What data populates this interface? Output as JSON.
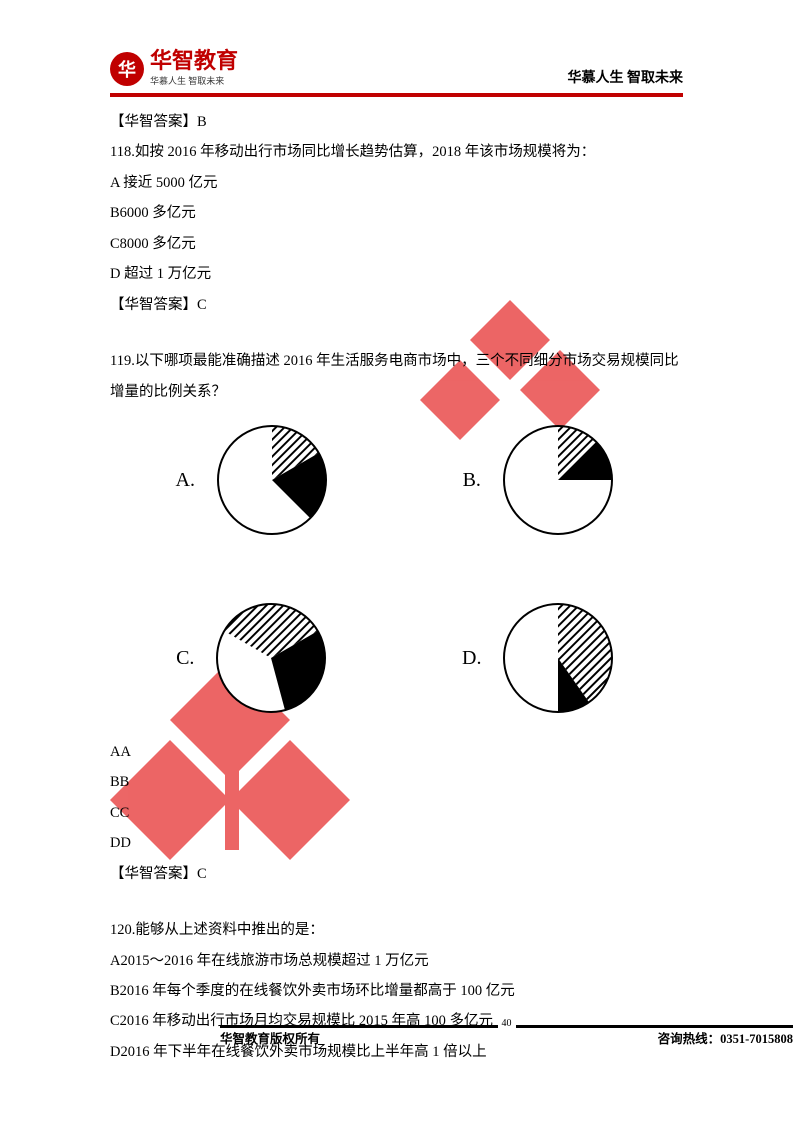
{
  "header": {
    "logo_char": "华",
    "logo_main": "华智教育",
    "logo_sub": "华慕人生 智取未来",
    "right": "华慕人生 智取未来"
  },
  "body": {
    "ans117": "【华智答案】B",
    "q118": "118.如按 2016 年移动出行市场同比增长趋势估算，2018 年该市场规模将为：",
    "q118a": "A 接近 5000 亿元",
    "q118b": "B6000 多亿元",
    "q118c": "C8000 多亿元",
    "q118d": "D 超过 1 万亿元",
    "ans118": "【华智答案】C",
    "q119": "119.以下哪项最能准确描述 2016 年生活服务电商市场中，三个不同细分市场交易规模同比增量的比例关系？",
    "pies": {
      "A": {
        "label": "A.",
        "hatch_start": 0,
        "hatch_end": 60,
        "black_start": 60,
        "black_end": 135
      },
      "B": {
        "label": "B.",
        "hatch_start": 0,
        "hatch_end": 45,
        "black_start": 45,
        "black_end": 90
      },
      "C": {
        "label": "C.",
        "hatch_start": 300,
        "hatch_end": 420,
        "black_start": 60,
        "black_end": 165
      },
      "D": {
        "label": "D.",
        "hatch_start": 0,
        "hatch_end": 145,
        "black_start": 145,
        "black_end": 180
      }
    },
    "aa": "AA",
    "bb": "BB",
    "cc": "CC",
    "dd": "DD",
    "ans119": "【华智答案】C",
    "q120": "120.能够从上述资料中推出的是：",
    "q120a": "A2015～2016 年在线旅游市场总规模超过 1 万亿元",
    "q120b": "B2016 年每个季度的在线餐饮外卖市场环比增量都高于 100 亿元",
    "q120c": "C2016 年移动出行市场月均交易规模比 2015 年高 100 多亿元",
    "q120d": "D2016 年下半年在线餐饮外卖市场规模比上半年高 1 倍以上"
  },
  "footer": {
    "left": "华智教育版权所有",
    "page": "40",
    "right": "咨询热线：0351-7015808"
  },
  "style": {
    "pie_radius": 54,
    "pie_stroke": "#000000",
    "pie_fill_white": "#ffffff",
    "pie_fill_black": "#000000",
    "watermark_color": "#e94b4b"
  }
}
